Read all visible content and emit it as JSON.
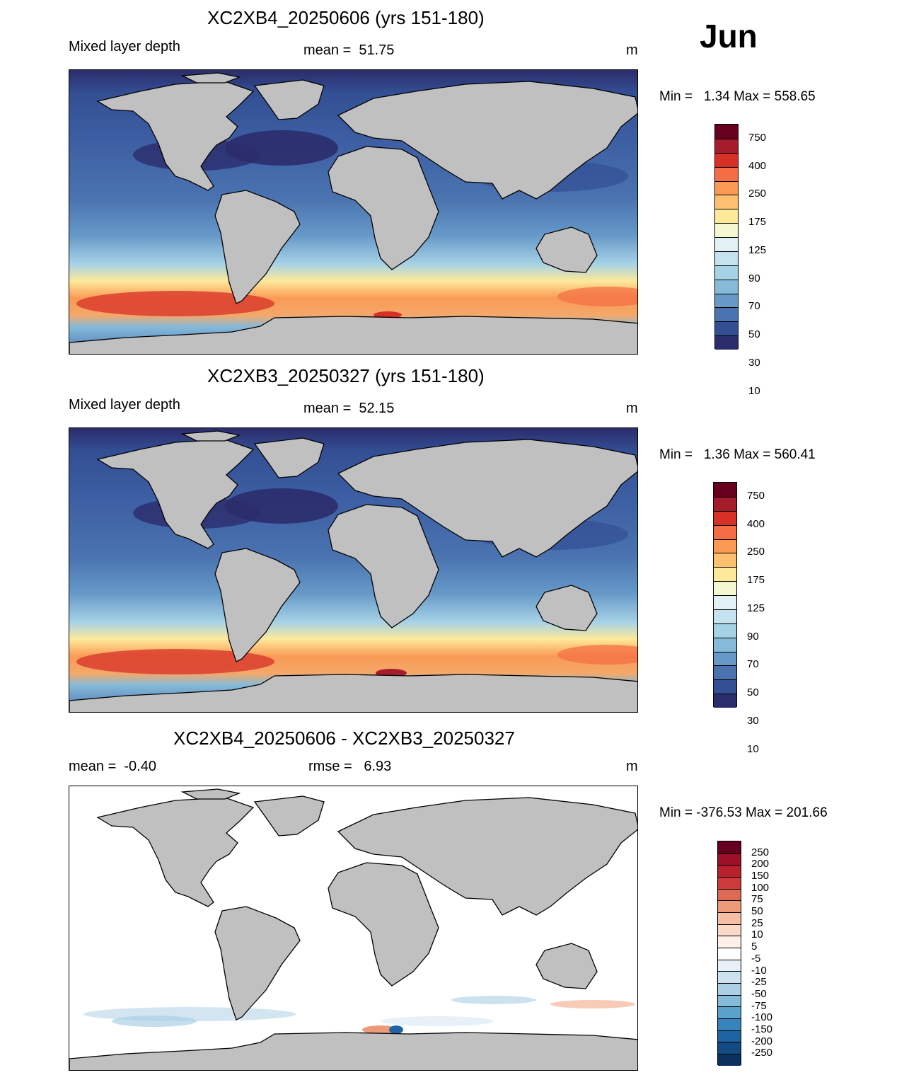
{
  "month": "Jun",
  "panels": [
    {
      "title": "XC2XB4_20250606 (yrs 151-180)",
      "left_label": "Mixed layer depth",
      "center_label": "mean =  51.75",
      "unit": "m",
      "minmax": "Min =   1.34 Max = 558.65",
      "kind": "abs"
    },
    {
      "title": "XC2XB3_20250327 (yrs 151-180)",
      "left_label": "Mixed layer depth",
      "center_label": "mean =  52.15",
      "unit": "m",
      "minmax": "Min =   1.36 Max = 560.41",
      "kind": "abs"
    },
    {
      "title": "XC2XB4_20250606 - XC2XB3_20250327",
      "left_label": "mean =  -0.40",
      "center_label": "rmse =   6.93",
      "unit": "m",
      "minmax": "Min = -376.53 Max = 201.66",
      "kind": "diff"
    }
  ],
  "colorbar_abs": {
    "labels": [
      "750",
      "400",
      "250",
      "175",
      "125",
      "90",
      "70",
      "50",
      "30",
      "10"
    ],
    "colors": [
      "#67001f",
      "#a51d2d",
      "#d73027",
      "#f46d43",
      "#fa9a55",
      "#fdc070",
      "#fee99a",
      "#f4f8d0",
      "#e2f2f4",
      "#c4e3ef",
      "#a6d2e6",
      "#86bad9",
      "#6699c8",
      "#4a73b0",
      "#334f94",
      "#2b2c6b"
    ]
  },
  "colorbar_diff": {
    "labels": [
      "250",
      "200",
      "150",
      "100",
      "75",
      "50",
      "25",
      "10",
      "5",
      "-5",
      "-10",
      "-25",
      "-50",
      "-75",
      "-100",
      "-150",
      "-200",
      "-250"
    ],
    "colors": [
      "#67001f",
      "#9e1027",
      "#b8202e",
      "#cb3b3b",
      "#dc6a55",
      "#ec9a79",
      "#f6bea5",
      "#fbd9c9",
      "#fdf0e8",
      "#ffffff",
      "#e8f1f7",
      "#cde2ef",
      "#abd0e5",
      "#84bcda",
      "#5aa1cc",
      "#3883bc",
      "#1f64a2",
      "#134a82",
      "#0b3160"
    ]
  },
  "map_colors": {
    "land": "#c0c0c0",
    "coast": "#000000",
    "diff_background": "#ffffff"
  }
}
